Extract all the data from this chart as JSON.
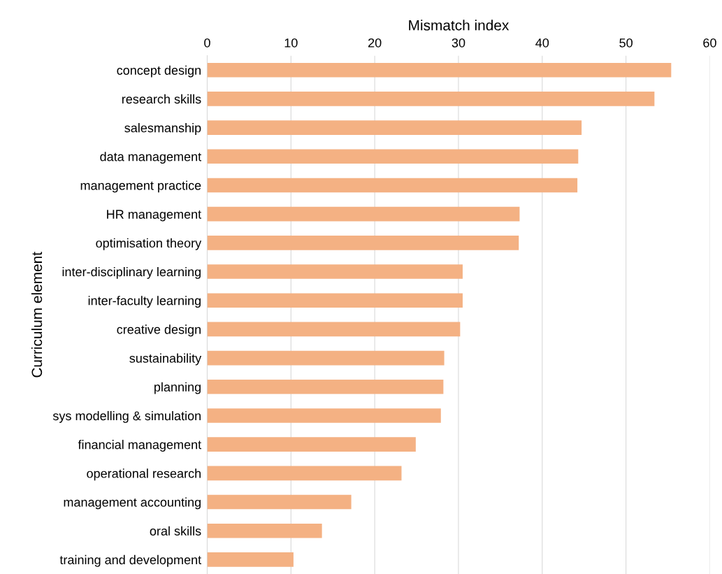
{
  "chart_data": {
    "type": "bar",
    "orientation": "horizontal",
    "xlabel": "Mismatch index",
    "ylabel": "Curriculum element",
    "categories": [
      "concept design",
      "research skills",
      "salesmanship",
      "data management",
      "management practice",
      "HR management",
      "optimisation theory",
      "inter-disciplinary learning",
      "inter-faculty learning",
      "creative design",
      "sustainability",
      "planning",
      "sys modelling & simulation",
      "financial management",
      "operational research",
      "management accounting",
      "oral skills",
      "training and development"
    ],
    "values": [
      55.4,
      53.4,
      44.7,
      44.3,
      44.2,
      37.3,
      37.2,
      30.5,
      30.5,
      30.2,
      28.3,
      28.2,
      27.9,
      24.9,
      23.2,
      17.2,
      13.7,
      10.3
    ],
    "color": "#f4b183",
    "xlim": [
      0,
      60
    ],
    "xticks": [
      0,
      10,
      20,
      30,
      40,
      50,
      60
    ],
    "grid": "x"
  }
}
